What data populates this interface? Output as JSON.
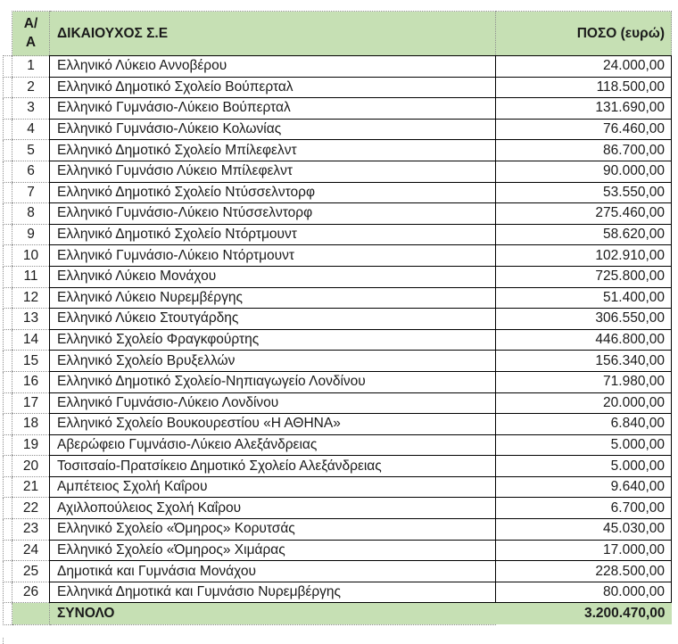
{
  "table": {
    "header": {
      "index": "Α/Α",
      "beneficiary": "ΔΙΚΑΙΟΥΧΟΣ Σ.Ε",
      "amount": "ΠΟΣΟ (ευρώ)"
    },
    "rows": [
      {
        "num": "1",
        "name": "Ελληνικό Λύκειο Αννοβέρου",
        "amount": "24.000,00"
      },
      {
        "num": "2",
        "name": "Ελληνικό Δημοτικό Σχολείο Βούπερταλ",
        "amount": "118.500,00"
      },
      {
        "num": "3",
        "name": "Ελληνικό Γυμνάσιο-Λύκειο Βούπερταλ",
        "amount": "131.690,00"
      },
      {
        "num": "4",
        "name": "Ελληνικό Γυμνάσιο-Λύκειο Κολωνίας",
        "amount": "76.460,00"
      },
      {
        "num": "5",
        "name": "Ελληνικό Δημοτικό Σχολείο Μπίλεφελντ",
        "amount": "86.700,00"
      },
      {
        "num": "6",
        "name": "Ελληνικό Γυμνάσιο Λύκειο Μπίλεφελντ",
        "amount": "90.000,00"
      },
      {
        "num": "7",
        "name": "Ελληνικό Δημοτικό Σχολείο Ντύσσελντορφ",
        "amount": "53.550,00"
      },
      {
        "num": "8",
        "name": "Ελληνικό Γυμνάσιο-Λύκειο Ντύσσελντορφ",
        "amount": "275.460,00"
      },
      {
        "num": "9",
        "name": "Ελληνικό Δημοτικό Σχολείο Ντόρτμουντ",
        "amount": "58.620,00"
      },
      {
        "num": "10",
        "name": "Ελληνικό Γυμνάσιο-Λύκειο Ντόρτμουντ",
        "amount": "102.910,00"
      },
      {
        "num": "11",
        "name": "Ελληνικό Λύκειο Μονάχου",
        "amount": "725.800,00"
      },
      {
        "num": "12",
        "name": "Ελληνικό Λύκειο Νυρεμβέργης",
        "amount": "51.400,00"
      },
      {
        "num": "13",
        "name": "Ελληνικό Λύκειο Στουτγάρδης",
        "amount": "306.550,00"
      },
      {
        "num": "14",
        "name": "Ελληνικό Σχολείο Φραγκφούρτης",
        "amount": "446.800,00"
      },
      {
        "num": "15",
        "name": "Ελληνικό Σχολείο Βρυξελλών",
        "amount": "156.340,00"
      },
      {
        "num": "16",
        "name": "Ελληνικό Δημοτικό Σχολείο-Νηπιαγωγείο Λονδίνου",
        "amount": "71.980,00"
      },
      {
        "num": "17",
        "name": "Ελληνικό Γυμνάσιο-Λύκειο Λονδίνου",
        "amount": "20.000,00"
      },
      {
        "num": "18",
        "name": "Ελληνικό Σχολείο Βουκουρεστίου «Η ΑΘΗΝΑ»",
        "amount": "6.840,00"
      },
      {
        "num": "19",
        "name": "Αβερώφειο Γυμνάσιο-Λύκειο Αλεξάνδρειας",
        "amount": "5.000,00"
      },
      {
        "num": "20",
        "name": "Τοσιτσαίο-Πρατσίκειο Δημοτικό Σχολείο Αλεξάνδρειας",
        "amount": "5.000,00"
      },
      {
        "num": "21",
        "name": "Αμπέτειος Σχολή Καΐρου",
        "amount": "9.640,00"
      },
      {
        "num": "22",
        "name": "Αχιλλοπούλειος Σχολή Καΐρου",
        "amount": "6.700,00"
      },
      {
        "num": "23",
        "name": "Ελληνικό Σχολείο «Όμηρος» Κορυτσάς",
        "amount": "45.030,00"
      },
      {
        "num": "24",
        "name": "Ελληνικό Σχολείο «Όμηρος» Χιμάρας",
        "amount": "17.000,00"
      },
      {
        "num": "25",
        "name": "Δημοτικά και Γυμνάσια Μονάχου",
        "amount": "228.500,00"
      },
      {
        "num": "26",
        "name": "Ελληνικά Δημοτικά και Γυμνάσιο Νυρεμβέργης",
        "amount": "80.000,00"
      }
    ],
    "footer": {
      "label": "ΣΥΝΟΛΟ",
      "total": "3.200.470,00"
    }
  },
  "colors": {
    "header_bg": "#c6e0b4",
    "total_bg": "#c6e0b4",
    "grid": "#000000",
    "dotted": "#8f8f8f",
    "text": "#1b1b1b"
  }
}
